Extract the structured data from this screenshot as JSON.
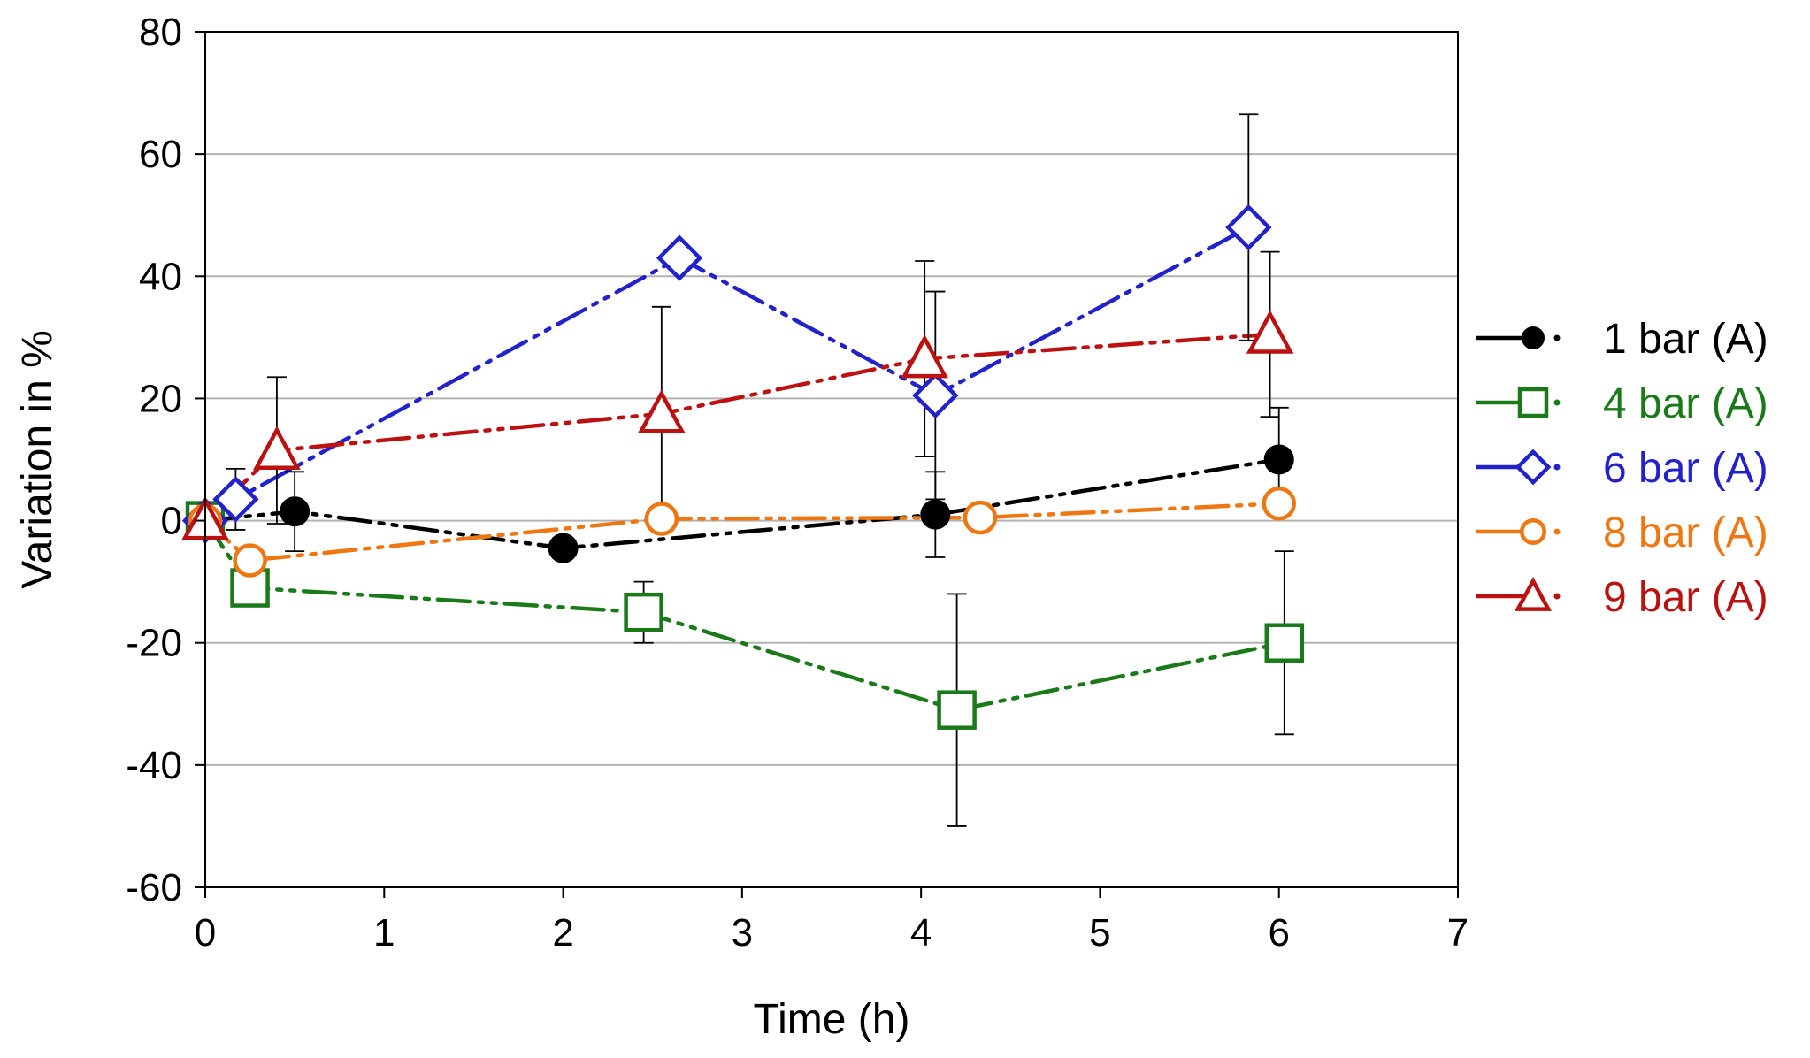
{
  "chart_data": {
    "type": "line",
    "title": "",
    "xlabel": "Time (h)",
    "ylabel": "Variation in %",
    "xlim": [
      0,
      7
    ],
    "ylim": [
      -60,
      80
    ],
    "xticks": [
      0,
      1,
      2,
      3,
      4,
      5,
      6,
      7
    ],
    "yticks": [
      -60,
      -40,
      -20,
      0,
      20,
      40,
      60,
      80
    ],
    "xtick_labels": [
      "0",
      "1",
      "2",
      "3",
      "4",
      "5",
      "6",
      "7"
    ],
    "ytick_labels": [
      "-60",
      "-40",
      "-20",
      "0",
      "20",
      "40",
      "60",
      "80"
    ],
    "grid": "horizontal",
    "legend_position": "right",
    "series": [
      {
        "name": "1 bar (A)",
        "color": "#000000",
        "marker": "filled-circle",
        "x": [
          0,
          0.5,
          2.0,
          4.08,
          6.0
        ],
        "y": [
          0,
          1.5,
          -4.5,
          1.0,
          10.0
        ],
        "err": [
          0,
          6.5,
          0,
          7.0,
          8.5
        ]
      },
      {
        "name": "4 bar (A)",
        "color": "#1a7a1a",
        "marker": "open-square",
        "x": [
          0,
          0.25,
          2.45,
          4.2,
          6.03
        ],
        "y": [
          0,
          -11.0,
          -15.0,
          -31.0,
          -20.0
        ],
        "err": [
          0,
          3.0,
          5.0,
          19.0,
          15.0
        ]
      },
      {
        "name": "6 bar (A)",
        "color": "#2222cc",
        "marker": "open-diamond",
        "x": [
          0,
          0.17,
          2.65,
          4.08,
          5.83
        ],
        "y": [
          0,
          3.5,
          43.0,
          20.5,
          48.0
        ],
        "err": [
          0,
          5.0,
          0,
          17.0,
          18.5
        ]
      },
      {
        "name": "8 bar (A)",
        "color": "#ee7711",
        "marker": "open-circle",
        "x": [
          0,
          0.25,
          2.55,
          4.33,
          6.0
        ],
        "y": [
          0,
          -6.5,
          0.3,
          0.5,
          2.8
        ],
        "err": [
          0,
          0,
          0,
          0,
          0
        ]
      },
      {
        "name": "9 bar (A)",
        "color": "#bb1111",
        "marker": "open-triangle",
        "x": [
          0,
          0.4,
          2.55,
          4.02,
          5.95
        ],
        "y": [
          0,
          11.5,
          17.5,
          26.5,
          30.5
        ],
        "err": [
          0,
          12.0,
          17.5,
          16.0,
          13.5
        ]
      }
    ]
  }
}
